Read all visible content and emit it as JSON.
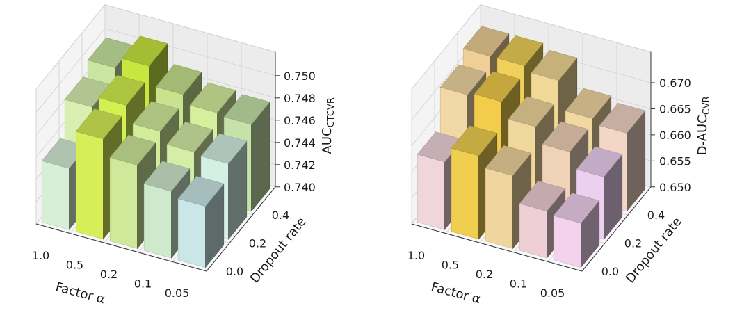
{
  "chart_data": [
    {
      "type": "bar3d",
      "xlabel": "Factor α",
      "ylabel": "Dropout rate",
      "zlabel": "AUC",
      "zlabel_sub": "CTCVR",
      "x_ticks": [
        "1.0",
        "0.5",
        "0.2",
        "0.1",
        "0.05"
      ],
      "y_ticks": [
        "0.0",
        "0.2",
        "0.4"
      ],
      "z_ticks": [
        "0.740",
        "0.742",
        "0.744",
        "0.746",
        "0.748",
        "0.750"
      ],
      "zlim": [
        0.74,
        0.751
      ],
      "grid": true,
      "values": [
        [
          0.7455,
          0.7485,
          0.7495
        ],
        [
          0.749,
          0.7495,
          0.7505
        ],
        [
          0.7475,
          0.748,
          0.7488
        ],
        [
          0.746,
          0.747,
          0.748
        ],
        [
          0.7455,
          0.7468,
          0.7478
        ]
      ],
      "colors": [
        [
          "#d7eed7",
          "#d9efb0",
          "#c8e6a0"
        ],
        [
          "#d6ee57",
          "#d4f050",
          "#c8e640"
        ],
        [
          "#cfe99a",
          "#d2ec9a",
          "#c8e28e"
        ],
        [
          "#cfe9cc",
          "#d4eea8",
          "#d6ef9c"
        ],
        [
          "#c9e7e7",
          "#d4efe4",
          "#c6e2a8"
        ]
      ]
    },
    {
      "type": "bar3d",
      "xlabel": "Factor α",
      "ylabel": "Dropout rate",
      "zlabel": "D-AUC",
      "zlabel_sub": "CVR",
      "x_ticks": [
        "1.0",
        "0.5",
        "0.2",
        "0.1",
        "0.05"
      ],
      "y_ticks": [
        "0.0",
        "0.2",
        "0.4"
      ],
      "z_ticks": [
        "0.650",
        "0.655",
        "0.660",
        "0.665",
        "0.670"
      ],
      "zlim": [
        0.65,
        0.6735
      ],
      "grid": true,
      "values": [
        [
          0.663,
          0.6705,
          0.6725
        ],
        [
          0.666,
          0.671,
          0.6725
        ],
        [
          0.664,
          0.668,
          0.6715
        ],
        [
          0.659,
          0.665,
          0.666
        ],
        [
          0.6585,
          0.662,
          0.665
        ]
      ],
      "colors": [
        [
          "#f0d6dc",
          "#f2d8a4",
          "#efcf96"
        ],
        [
          "#f0ce50",
          "#f2cc4a",
          "#efd05a"
        ],
        [
          "#f0d69e",
          "#f0d79c",
          "#f2d896"
        ],
        [
          "#efcfd6",
          "#f0d2b8",
          "#f0d8a0"
        ],
        [
          "#f2d2ec",
          "#ecd0f0",
          "#f2d6c6"
        ]
      ]
    }
  ]
}
